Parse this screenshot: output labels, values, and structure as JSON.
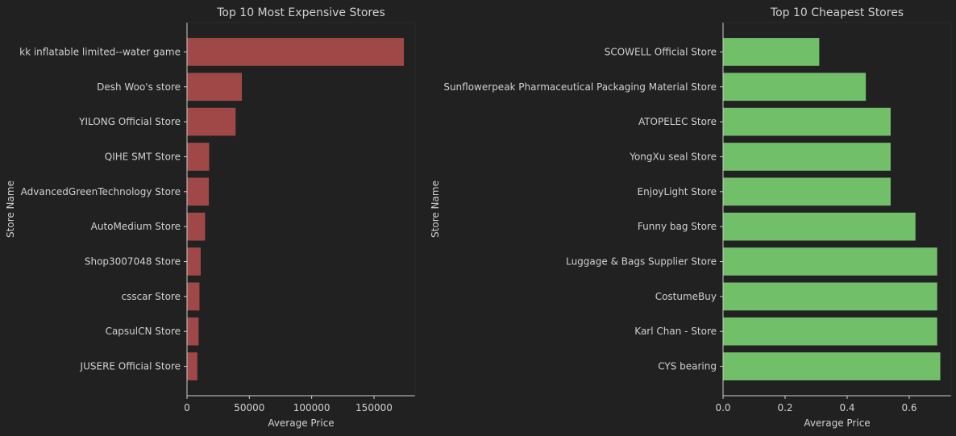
{
  "chart_data": [
    {
      "type": "bar",
      "orientation": "horizontal",
      "title": "Top 10 Most Expensive Stores",
      "xlabel": "Average Price",
      "ylabel": "Store Name",
      "categories": [
        "kk inflatable limited--water game",
        "Desh Woo's store",
        "YILONG Official Store",
        "QIHE SMT Store",
        "AdvancedGreenTechnology Store",
        "AutoMedium Store",
        "Shop3007048 Store",
        "csscar Store",
        "CapsulCN Store",
        "JUSERE Official Store"
      ],
      "values": [
        174000,
        44000,
        39000,
        17800,
        17500,
        14500,
        11000,
        10000,
        9300,
        8300
      ],
      "xlim": [
        0,
        183000
      ],
      "xticks": [
        0,
        50000,
        100000,
        150000
      ],
      "xtick_labels": [
        "0",
        "50000",
        "100000",
        "150000"
      ],
      "bar_color": "#a04848",
      "grid": false
    },
    {
      "type": "bar",
      "orientation": "horizontal",
      "title": "Top 10 Cheapest Stores",
      "xlabel": "Average Price",
      "ylabel": "Store Name",
      "categories": [
        "SCOWELL Official Store",
        "Sunflowerpeak Pharmaceutical Packaging Material Store",
        "ATOPELEC Store",
        "YongXu seal Store",
        "EnjoyLight Store",
        "Funny bag Store",
        "Luggage & Bags Supplier Store",
        "CostumeBuy",
        "Karl Chan - Store",
        "CYS bearing"
      ],
      "values": [
        0.31,
        0.46,
        0.54,
        0.54,
        0.54,
        0.62,
        0.69,
        0.69,
        0.69,
        0.7
      ],
      "xlim": [
        0,
        0.735
      ],
      "xticks": [
        0,
        0.2,
        0.4,
        0.6
      ],
      "xtick_labels": [
        "0.0",
        "0.2",
        "0.4",
        "0.6"
      ],
      "bar_color": "#72bf6a",
      "grid": false
    }
  ]
}
